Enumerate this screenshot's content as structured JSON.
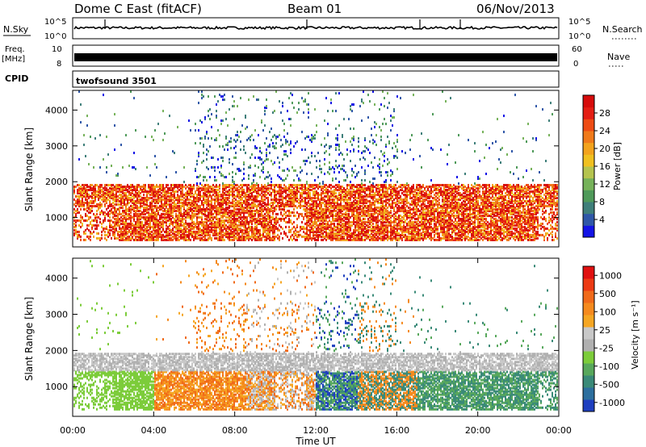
{
  "header": {
    "title": "Dome C East (fitACF)",
    "beam": "Beam 01",
    "date": "06/Nov/2013"
  },
  "strips": {
    "nsky_label": "N.Sky",
    "nsky_ticks": [
      "10^5",
      "10^0"
    ],
    "nsearch_label": "N.Search",
    "freq_label_1": "Freq.",
    "freq_label_2": "[MHz]",
    "freq_ticks": [
      "10",
      "8"
    ],
    "nave_label": "Nave",
    "nave_ticks": [
      "60",
      "0"
    ],
    "cpid_label": "CPID",
    "cpid_value": "twofsound 3501"
  },
  "chart_data": [
    {
      "type": "heatmap",
      "title": "",
      "ylabel": "Slant Range [km]",
      "xlabel": "",
      "x_range_hours": [
        0,
        24
      ],
      "ylim": [
        180,
        4550
      ],
      "yticks": [
        1000,
        2000,
        3000,
        4000
      ],
      "colorbar": {
        "label": "Power [dB]",
        "range": [
          0,
          32
        ],
        "ticks": [
          4,
          8,
          12,
          16,
          20,
          24,
          28
        ],
        "colors": [
          "#1414e6",
          "#2f57a8",
          "#3f7f7a",
          "#4f9a5a",
          "#76b25a",
          "#b5c44f",
          "#f0c020",
          "#f3a31d",
          "#f07a1a",
          "#ee4c14",
          "#e41e14",
          "#d60c0c"
        ]
      }
    },
    {
      "type": "heatmap",
      "title": "",
      "ylabel": "Slant Range [km]",
      "xlabel": "Time UT",
      "x_range_hours": [
        0,
        24
      ],
      "xticks": [
        "00:00",
        "04:00",
        "08:00",
        "12:00",
        "16:00",
        "20:00",
        "00:00"
      ],
      "ylim": [
        180,
        4550
      ],
      "yticks": [
        1000,
        2000,
        3000,
        4000
      ],
      "colorbar": {
        "label": "Velocity [m s⁻¹]",
        "ticks": [
          "1000",
          "500",
          "100",
          "25",
          "-25",
          "-100",
          "-500",
          "-1000"
        ],
        "colors": [
          "#1e3fbf",
          "#2d6f9e",
          "#3a8a78",
          "#58a85c",
          "#7ccc3a",
          "#b0b0b0",
          "#c8c8c8",
          "#f5a623",
          "#f58a1e",
          "#f06a1a",
          "#ec3a14",
          "#e01010"
        ]
      }
    }
  ]
}
